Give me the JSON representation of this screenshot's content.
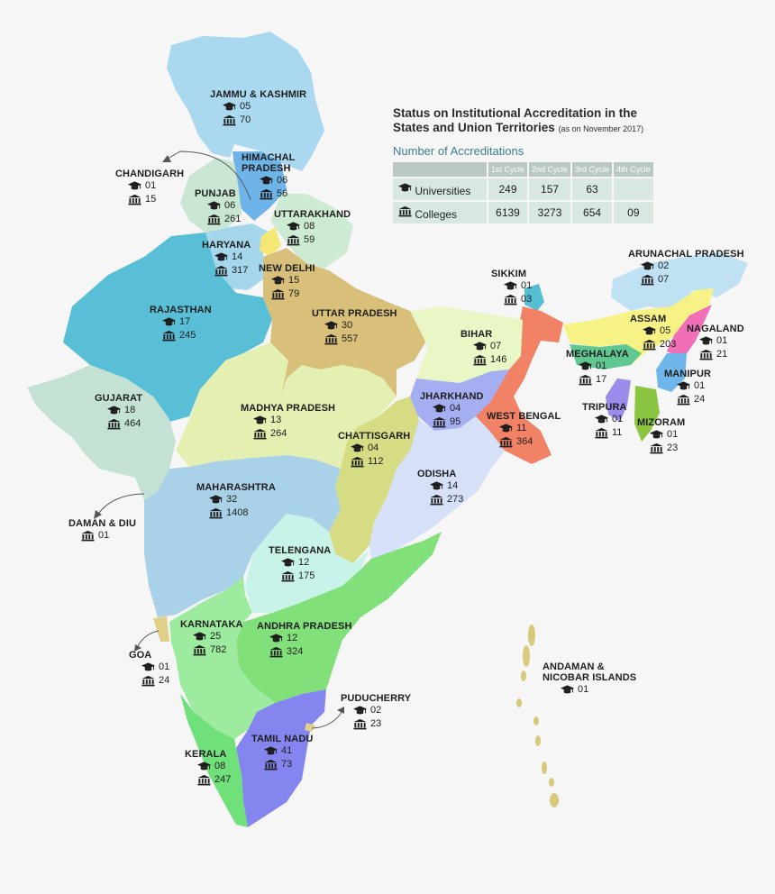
{
  "panel": {
    "title_line1": "Status on Institutional Accreditation in the",
    "title_line2": "States and Union Territories",
    "date_note": "(as on November 2017)",
    "subtitle": "Number of Accreditations",
    "columns": [
      "1st Cycle",
      "2nd Cycle",
      "3rd Cycle",
      "4th Cycle"
    ],
    "rows": [
      {
        "label": "Universities",
        "icon": "graduation-cap-icon",
        "values": [
          "249",
          "157",
          "63",
          ""
        ]
      },
      {
        "label": "Colleges",
        "icon": "college-building-icon",
        "values": [
          "6139",
          "3273",
          "654",
          "09"
        ]
      }
    ]
  },
  "regions": [
    {
      "id": "jk",
      "name": "JAMMU & KASHMIR",
      "universities": "05",
      "colleges": "70",
      "color": "#a9d8ef"
    },
    {
      "id": "hp",
      "name": "HIMACHAL PRADESH",
      "universities": "06",
      "colleges": "56",
      "color": "#6fb4e8"
    },
    {
      "id": "ch",
      "name": "CHANDIGARH",
      "universities": "01",
      "colleges": "15",
      "color": ""
    },
    {
      "id": "pb",
      "name": "PUNJAB",
      "universities": "06",
      "colleges": "261",
      "color": "#c9e6d2"
    },
    {
      "id": "uk",
      "name": "UTTARAKHAND",
      "universities": "08",
      "colleges": "59",
      "color": "#cdebd3"
    },
    {
      "id": "hr",
      "name": "HARYANA",
      "universities": "14",
      "colleges": "317",
      "color": "#a5d7ec"
    },
    {
      "id": "dl",
      "name": "NEW DELHI",
      "universities": "15",
      "colleges": "79",
      "color": "#f4e774"
    },
    {
      "id": "rj",
      "name": "RAJASTHAN",
      "universities": "17",
      "colleges": "245",
      "color": "#58bfd7"
    },
    {
      "id": "up",
      "name": "UTTAR PRADESH",
      "universities": "30",
      "colleges": "557",
      "color": "#d8c07a"
    },
    {
      "id": "sk",
      "name": "SIKKIM",
      "universities": "01",
      "colleges": "03",
      "color": "#55bed1"
    },
    {
      "id": "ar",
      "name": "ARUNACHAL PRADESH",
      "universities": "02",
      "colleges": "07",
      "color": "#bfe1f3"
    },
    {
      "id": "as",
      "name": "ASSAM",
      "universities": "05",
      "colleges": "203",
      "color": "#f7f285"
    },
    {
      "id": "nl",
      "name": "NAGALAND",
      "universities": "01",
      "colleges": "21",
      "color": "#f16fb8"
    },
    {
      "id": "br",
      "name": "BIHAR",
      "universities": "07",
      "colleges": "146",
      "color": "#e9f6c6"
    },
    {
      "id": "ml",
      "name": "MEGHALAYA",
      "universities": "01",
      "colleges": "17",
      "color": "#5fc78f"
    },
    {
      "id": "mn",
      "name": "MANIPUR",
      "universities": "01",
      "colleges": "24",
      "color": "#6fb6ea"
    },
    {
      "id": "gj",
      "name": "GUJARAT",
      "universities": "18",
      "colleges": "464",
      "color": "#c3e2d4"
    },
    {
      "id": "mp",
      "name": "MADHYA PRADESH",
      "universities": "13",
      "colleges": "264",
      "color": "#e3f0b1"
    },
    {
      "id": "jh",
      "name": "JHARKHAND",
      "universities": "04",
      "colleges": "95",
      "color": "#a4aef0"
    },
    {
      "id": "wb",
      "name": "WEST BENGAL",
      "universities": "11",
      "colleges": "364",
      "color": "#f28266"
    },
    {
      "id": "tr",
      "name": "TRIPURA",
      "universities": "01",
      "colleges": "11",
      "color": "#9b8bea"
    },
    {
      "id": "mz",
      "name": "MIZORAM",
      "universities": "01",
      "colleges": "23",
      "color": "#8bc541"
    },
    {
      "id": "cg",
      "name": "CHATTISGARH",
      "universities": "04",
      "colleges": "112",
      "color": "#d6dc84"
    },
    {
      "id": "od",
      "name": "ODISHA",
      "universities": "14",
      "colleges": "273",
      "color": "#d6e0f8"
    },
    {
      "id": "mh",
      "name": "MAHARASHTRA",
      "universities": "32",
      "colleges": "1408",
      "color": "#a9d1e8"
    },
    {
      "id": "dd",
      "name": "DAMAN & DIU",
      "universities": "",
      "colleges": "01",
      "color": ""
    },
    {
      "id": "tg",
      "name": "TELENGANA",
      "universities": "12",
      "colleges": "175",
      "color": "#c8f3e8"
    },
    {
      "id": "ka",
      "name": "KARNATAKA",
      "universities": "25",
      "colleges": "782",
      "color": "#9deb9f"
    },
    {
      "id": "ap",
      "name": "ANDHRA PRADESH",
      "universities": "12",
      "colleges": "324",
      "color": "#82e07b"
    },
    {
      "id": "ga",
      "name": "GOA",
      "universities": "01",
      "colleges": "24",
      "color": "#e0cf88"
    },
    {
      "id": "an",
      "name": "ANDAMAN & NICOBAR ISLANDS",
      "universities": "01",
      "colleges": "",
      "color": "#d7ca7c"
    },
    {
      "id": "py",
      "name": "PUDUCHERRY",
      "universities": "02",
      "colleges": "23",
      "color": "#e0cf88"
    },
    {
      "id": "tn",
      "name": "TAMIL NADU",
      "universities": "41",
      "colleges": "73",
      "color": "#8585f0"
    },
    {
      "id": "kl",
      "name": "KERALA",
      "universities": "08",
      "colleges": "247",
      "color": "#6fe07a"
    }
  ]
}
